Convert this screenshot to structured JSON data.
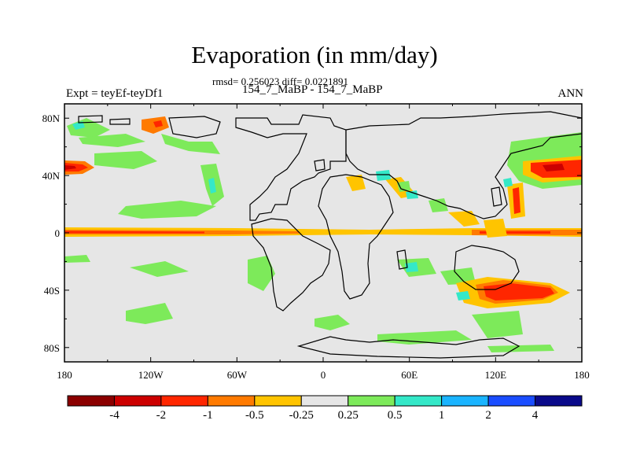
{
  "chart_data": {
    "type": "contour-map",
    "title": "Evaporation (in mm/day)",
    "stats_line": "rmsd= 0.256023 diff= 0.0221891",
    "cases": "154_7_MaBP - 154_7_MaBP",
    "experiment": "Expt = teyEf-teyDf1",
    "season": "ANN",
    "x_ticks": [
      "180",
      "120W",
      "60W",
      "0",
      "60E",
      "120E",
      "180"
    ],
    "x_values": [
      -180,
      -120,
      -60,
      0,
      60,
      120,
      180
    ],
    "y_ticks": [
      "80N",
      "40N",
      "0",
      "40S",
      "80S"
    ],
    "y_values": [
      80,
      40,
      0,
      -40,
      -80
    ],
    "xlim": [
      -180,
      180
    ],
    "ylim": [
      -90,
      90
    ],
    "colorbar": {
      "labels": [
        "-4",
        "-2",
        "-1",
        "-0.5",
        "-0.25",
        "0.25",
        "0.5",
        "1",
        "2",
        "4"
      ],
      "colors": [
        "#8b0000",
        "#cc0000",
        "#ff2600",
        "#ff7a00",
        "#ffc400",
        "#e6e6e6",
        "#7dea5a",
        "#34e8c8",
        "#1ab4ff",
        "#1a4dff",
        "#0a0a8a"
      ]
    },
    "anomalies": [
      {
        "lon": -170,
        "lat": 45,
        "level": -2,
        "desc": "NW Pacific negative"
      },
      {
        "lon": -115,
        "lat": 75,
        "level": -0.5,
        "desc": "Arctic positive-negative pair"
      },
      {
        "lon": 160,
        "lat": 45,
        "level": -2,
        "desc": "Kuroshio negative"
      },
      {
        "lon": 135,
        "lat": -42,
        "level": -2,
        "desc": "Southern Indian/Australia negative"
      },
      {
        "lon": 0,
        "lat": 0,
        "level": -1,
        "desc": "Equatorial band negative"
      },
      {
        "lon": -110,
        "lat": 25,
        "level": 0.5,
        "desc": "Subtropical positive"
      },
      {
        "lon": -120,
        "lat": -45,
        "level": 0.5,
        "desc": "Southern Pacific positive"
      }
    ]
  }
}
